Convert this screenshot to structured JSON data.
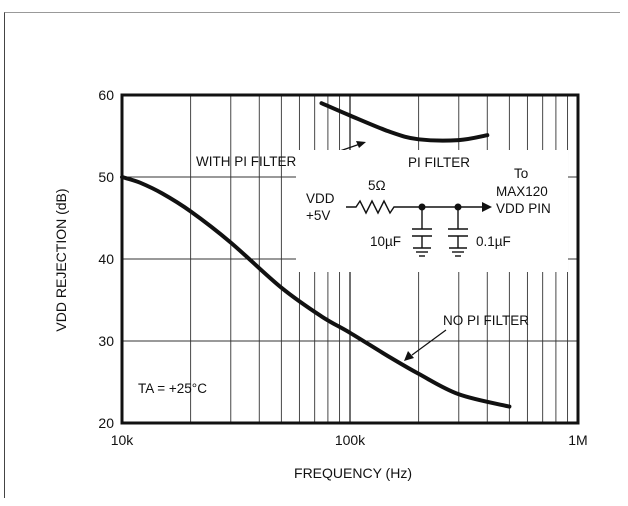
{
  "chart_data": {
    "type": "line",
    "xscale": "log",
    "xlim": [
      10000,
      1000000
    ],
    "ylim": [
      20,
      60
    ],
    "xticks": [
      {
        "value": 10000,
        "label": "10k"
      },
      {
        "value": 100000,
        "label": "100k"
      },
      {
        "value": 1000000,
        "label": "1M"
      }
    ],
    "yticks": [
      {
        "value": 20,
        "label": "20"
      },
      {
        "value": 30,
        "label": "30"
      },
      {
        "value": 40,
        "label": "40"
      },
      {
        "value": 50,
        "label": "50"
      },
      {
        "value": 60,
        "label": "60"
      }
    ],
    "xlabel": "FREQUENCY (Hz)",
    "ylabel": "VDD REJECTION (dB)",
    "grid": true,
    "series": [
      {
        "name": "WITH PI FILTER",
        "x": [
          75000,
          100000,
          150000,
          200000,
          300000,
          400000
        ],
        "y": [
          59.0,
          57.5,
          55.5,
          54.6,
          54.5,
          55.1
        ]
      },
      {
        "name": "NO PI FILTER",
        "x": [
          10000,
          12000,
          15000,
          20000,
          30000,
          50000,
          75000,
          100000,
          150000,
          200000,
          300000,
          500000
        ],
        "y": [
          50.0,
          49.3,
          48.0,
          45.8,
          42.0,
          36.5,
          33.0,
          31.0,
          28.0,
          26.0,
          23.5,
          22.0
        ]
      }
    ],
    "annotations": {
      "with_pi_filter": "WITH PI FILTER",
      "no_pi_filter": "NO PI FILTER",
      "temperature": "TA = +25°C"
    },
    "inset": {
      "title": "PI FILTER",
      "vdd_label": "VDD",
      "supply_label": "+5V",
      "resistor_label": "5Ω",
      "cap1_label": "10µF",
      "cap2_label": "0.1µF",
      "to_label": "To",
      "dest_label": "MAX120",
      "pin_label": "VDD PIN"
    }
  }
}
